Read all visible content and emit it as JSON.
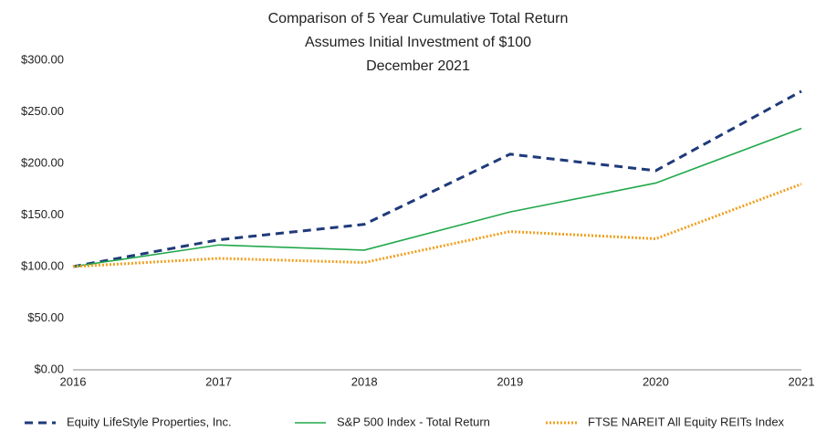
{
  "chart_data": {
    "type": "line",
    "title": [
      "Comparison of 5 Year Cumulative Total Return",
      "Assumes Initial Investment of $100",
      "December 2021"
    ],
    "categories": [
      "2016",
      "2017",
      "2018",
      "2019",
      "2020",
      "2021"
    ],
    "series": [
      {
        "name": "Equity LifeStyle Properties, Inc.",
        "color": "#1f3a7a",
        "dash": "dashed",
        "values": [
          100,
          126,
          141,
          209,
          193,
          270
        ]
      },
      {
        "name": "S&P 500 Index - Total Return",
        "color": "#21a84a",
        "dash": "solid",
        "values": [
          100,
          121,
          116,
          153,
          181,
          234
        ]
      },
      {
        "name": "FTSE NAREIT All Equity REITs Index",
        "color": "#f0a020",
        "dash": "dotted",
        "values": [
          100,
          108,
          104,
          134,
          127,
          180
        ]
      }
    ],
    "ylim": [
      0,
      300
    ],
    "yticks": [
      {
        "value": 0,
        "label": "$0.00"
      },
      {
        "value": 50,
        "label": "$50.00"
      },
      {
        "value": 100,
        "label": "$100.00"
      },
      {
        "value": 150,
        "label": "$150.00"
      },
      {
        "value": 200,
        "label": "$200.00"
      },
      {
        "value": 250,
        "label": "$250.00"
      },
      {
        "value": 300,
        "label": "$300.00"
      }
    ],
    "grid": false,
    "legend": "bottom"
  }
}
